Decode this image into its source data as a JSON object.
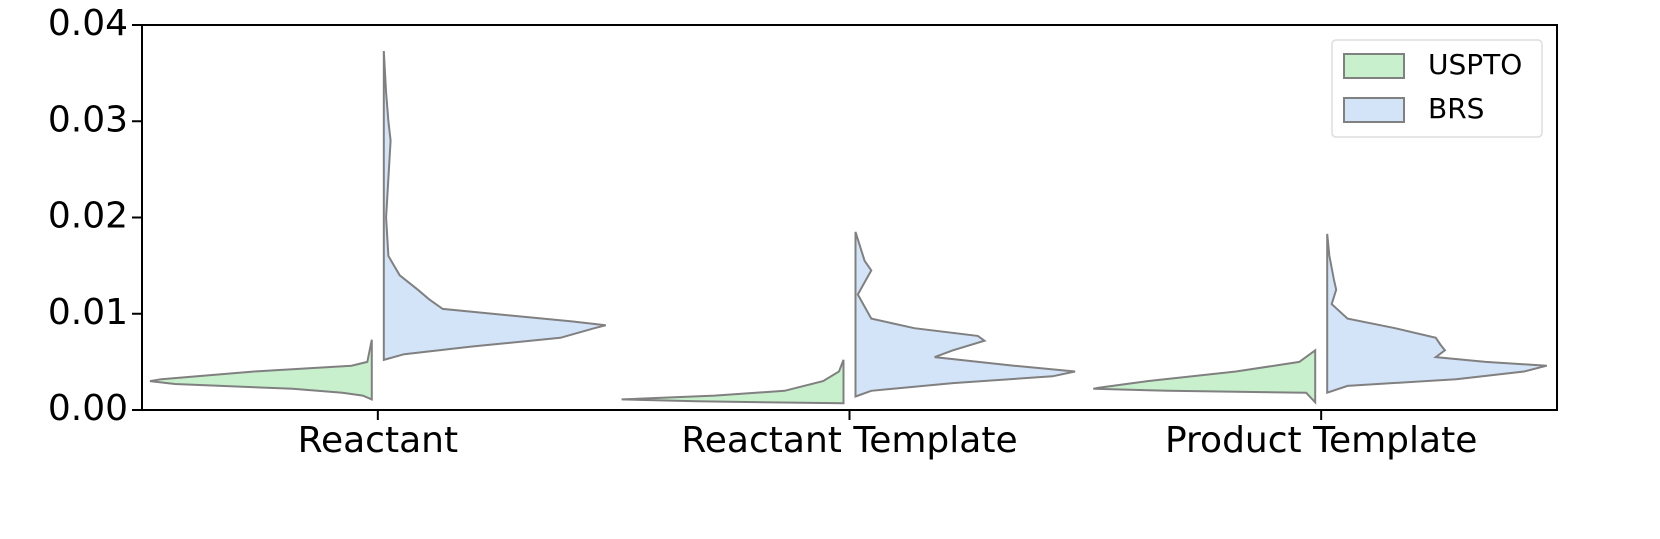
{
  "chart_data": {
    "type": "split-violin",
    "categories": [
      "Reactant",
      "Reactant Template",
      "Product Template"
    ],
    "ylim": [
      0,
      0.04
    ],
    "yticks": [
      {
        "value": 0,
        "label": "0.00"
      },
      {
        "value": 0.01,
        "label": "0.01"
      },
      {
        "value": 0.02,
        "label": "0.02"
      },
      {
        "value": 0.03,
        "label": "0.03"
      },
      {
        "value": 0.04,
        "label": "0.04"
      }
    ],
    "edge_color": "#808080",
    "legend": "upper right",
    "series": [
      {
        "name": "USPTO",
        "color": "#c8f0cc",
        "violins": [
          {
            "y": [
              0.0011,
              0.0015,
              0.0018,
              0.0022,
              0.0027,
              0.003,
              0.0032,
              0.004,
              0.0046,
              0.005,
              0.0073
            ],
            "density": [
              0,
              0.04,
              0.13,
              0.35,
              0.87,
              0.98,
              0.93,
              0.52,
              0.09,
              0.02,
              0
            ]
          },
          {
            "y": [
              0.0007,
              0.0009,
              0.0011,
              0.0012,
              0.0015,
              0.002,
              0.003,
              0.004,
              0.0052
            ],
            "density": [
              0,
              0.65,
              0.98,
              0.87,
              0.57,
              0.26,
              0.09,
              0.02,
              0
            ]
          },
          {
            "y": [
              0.0008,
              0.0018,
              0.002,
              0.0022,
              0.0023,
              0.003,
              0.004,
              0.005,
              0.0062
            ],
            "density": [
              0,
              0.04,
              0.65,
              0.98,
              0.96,
              0.74,
              0.35,
              0.07,
              0
            ]
          }
        ]
      },
      {
        "name": "BRS",
        "color": "#d3e3f8",
        "violins": [
          {
            "y": [
              0.0052,
              0.0058,
              0.0066,
              0.0075,
              0.0085,
              0.0088,
              0.0092,
              0.0105,
              0.0115,
              0.0125,
              0.014,
              0.016,
              0.02,
              0.028,
              0.03,
              0.033,
              0.0373
            ],
            "density": [
              0,
              0.09,
              0.39,
              0.78,
              0.93,
              0.98,
              0.83,
              0.26,
              0.2,
              0.15,
              0.07,
              0.02,
              0.01,
              0.03,
              0.02,
              0.01,
              0
            ]
          },
          {
            "y": [
              0.0014,
              0.002,
              0.0028,
              0.0035,
              0.004,
              0.0046,
              0.0055,
              0.0062,
              0.0072,
              0.0077,
              0.0085,
              0.0095,
              0.012,
              0.0145,
              0.0155,
              0.0185
            ],
            "density": [
              0,
              0.07,
              0.43,
              0.87,
              0.97,
              0.7,
              0.35,
              0.43,
              0.57,
              0.54,
              0.26,
              0.07,
              0.01,
              0.07,
              0.04,
              0
            ]
          },
          {
            "y": [
              0.0018,
              0.0025,
              0.0032,
              0.004,
              0.0046,
              0.005,
              0.0055,
              0.0062,
              0.0068,
              0.0075,
              0.0085,
              0.0095,
              0.011,
              0.0125,
              0.0135,
              0.016,
              0.0183
            ],
            "density": [
              0,
              0.09,
              0.57,
              0.87,
              0.97,
              0.7,
              0.48,
              0.52,
              0.5,
              0.48,
              0.3,
              0.09,
              0.02,
              0.04,
              0.03,
              0.01,
              0
            ]
          }
        ]
      }
    ]
  }
}
